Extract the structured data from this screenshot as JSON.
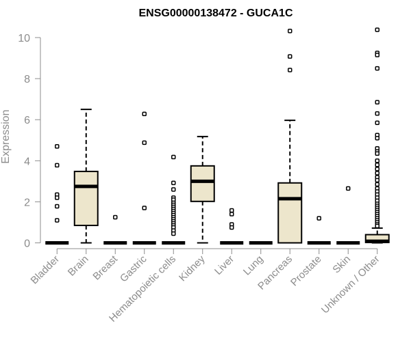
{
  "chart_data": {
    "type": "boxplot",
    "title": "ENSG00000138472 - GUCA1C",
    "xlabel": "",
    "ylabel": "Expression",
    "ylim": [
      0,
      10.5
    ],
    "yticks": [
      0,
      2,
      4,
      6,
      8,
      10
    ],
    "grid": false,
    "legend": "none",
    "colors": {
      "box_fill": "#ede6cc",
      "stroke": "#000000",
      "axis_text": "#8c8c8c",
      "axis_line": "#8c8c8c"
    },
    "categories": [
      "Bladder",
      "Brain",
      "Breast",
      "Gastric",
      "Hematopoietic cells",
      "Kidney",
      "Liver",
      "Lung",
      "Pancreas",
      "Prostate",
      "Skin",
      "Unknown / Other"
    ],
    "series": [
      {
        "category": "Bladder",
        "whisker_low": 0,
        "q1": 0,
        "median": 0,
        "q3": 0,
        "whisker_high": 0,
        "outliers": [
          4.7,
          3.78,
          2.35,
          2.2,
          1.78,
          1.1
        ]
      },
      {
        "category": "Brain",
        "whisker_low": 0,
        "q1": 0.85,
        "median": 2.75,
        "q3": 3.48,
        "whisker_high": 6.5,
        "outliers": []
      },
      {
        "category": "Breast",
        "whisker_low": 0,
        "q1": 0,
        "median": 0,
        "q3": 0,
        "whisker_high": 0,
        "outliers": [
          1.25
        ]
      },
      {
        "category": "Gastric",
        "whisker_low": 0,
        "q1": 0,
        "median": 0,
        "q3": 0,
        "whisker_high": 0,
        "outliers": [
          6.28,
          4.88,
          1.7
        ]
      },
      {
        "category": "Hematopoietic cells",
        "whisker_low": 0,
        "q1": 0,
        "median": 0,
        "q3": 0,
        "whisker_high": 0,
        "outliers": [
          4.18,
          2.92,
          2.6,
          2.2,
          2.1,
          1.95,
          1.85,
          1.75,
          1.65,
          1.55,
          1.45,
          1.35,
          1.25,
          1.15,
          1.05,
          0.95,
          0.85,
          0.75,
          0.6,
          0.45
        ]
      },
      {
        "category": "Kidney",
        "whisker_low": 0,
        "q1": 2.02,
        "median": 3.0,
        "q3": 3.75,
        "whisker_high": 5.18,
        "outliers": []
      },
      {
        "category": "Liver",
        "whisker_low": 0,
        "q1": 0,
        "median": 0,
        "q3": 0,
        "whisker_high": 0,
        "outliers": [
          1.58,
          1.4,
          0.9,
          0.75
        ]
      },
      {
        "category": "Lung",
        "whisker_low": 0,
        "q1": 0,
        "median": 0,
        "q3": 0,
        "whisker_high": 0,
        "outliers": []
      },
      {
        "category": "Pancreas",
        "whisker_low": 0,
        "q1": 0,
        "median": 2.15,
        "q3": 2.92,
        "whisker_high": 5.97,
        "outliers": [
          10.32,
          9.08,
          8.42
        ]
      },
      {
        "category": "Prostate",
        "whisker_low": 0,
        "q1": 0,
        "median": 0,
        "q3": 0,
        "whisker_high": 0,
        "outliers": [
          1.2
        ]
      },
      {
        "category": "Skin",
        "whisker_low": 0,
        "q1": 0,
        "median": 0,
        "q3": 0,
        "whisker_high": 0,
        "outliers": [
          2.65
        ]
      },
      {
        "category": "Unknown / Other",
        "whisker_low": 0,
        "q1": 0.02,
        "median": 0.08,
        "q3": 0.4,
        "whisker_high": 0.72,
        "outliers": [
          10.38,
          9.25,
          9.15,
          8.5,
          6.85,
          6.3,
          5.85,
          5.25,
          5.1,
          4.6,
          4.45,
          4.35,
          4.0,
          3.8,
          3.6,
          3.4,
          3.2,
          3.05,
          2.85,
          2.65,
          2.5,
          2.35,
          2.2,
          2.05,
          1.9,
          1.8,
          1.7,
          1.6,
          1.5,
          1.4,
          1.3,
          1.2,
          1.1,
          1.0,
          0.9,
          0.82
        ]
      }
    ]
  }
}
